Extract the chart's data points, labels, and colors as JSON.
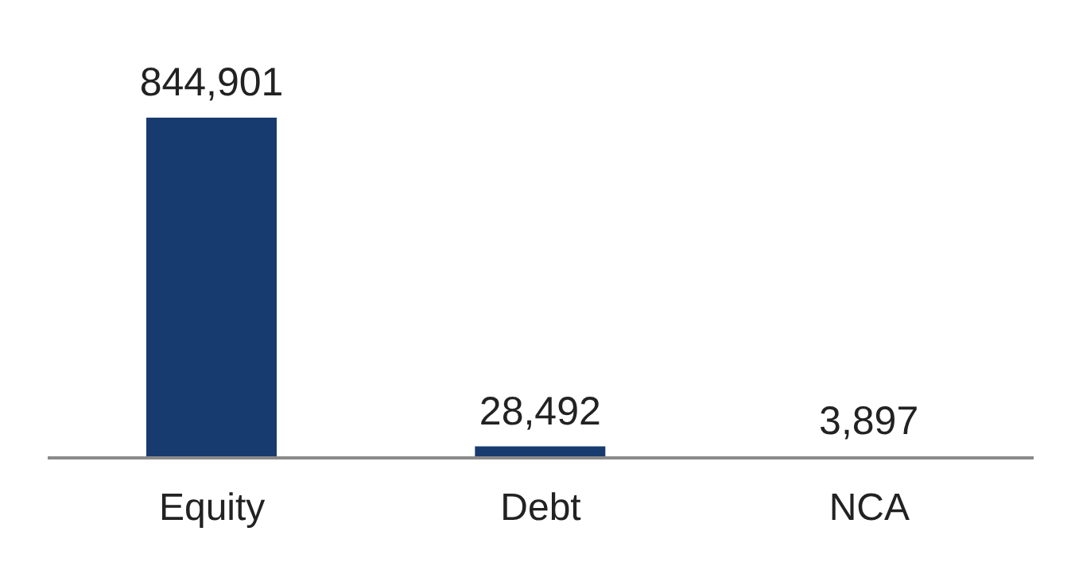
{
  "chart_data": {
    "type": "bar",
    "categories": [
      "Equity",
      "Debt",
      "NCA"
    ],
    "values": [
      844901,
      28492,
      3897
    ],
    "value_labels": [
      "844,901",
      "28,492",
      "3,897"
    ],
    "color": "#173b6f",
    "grid": false
  }
}
